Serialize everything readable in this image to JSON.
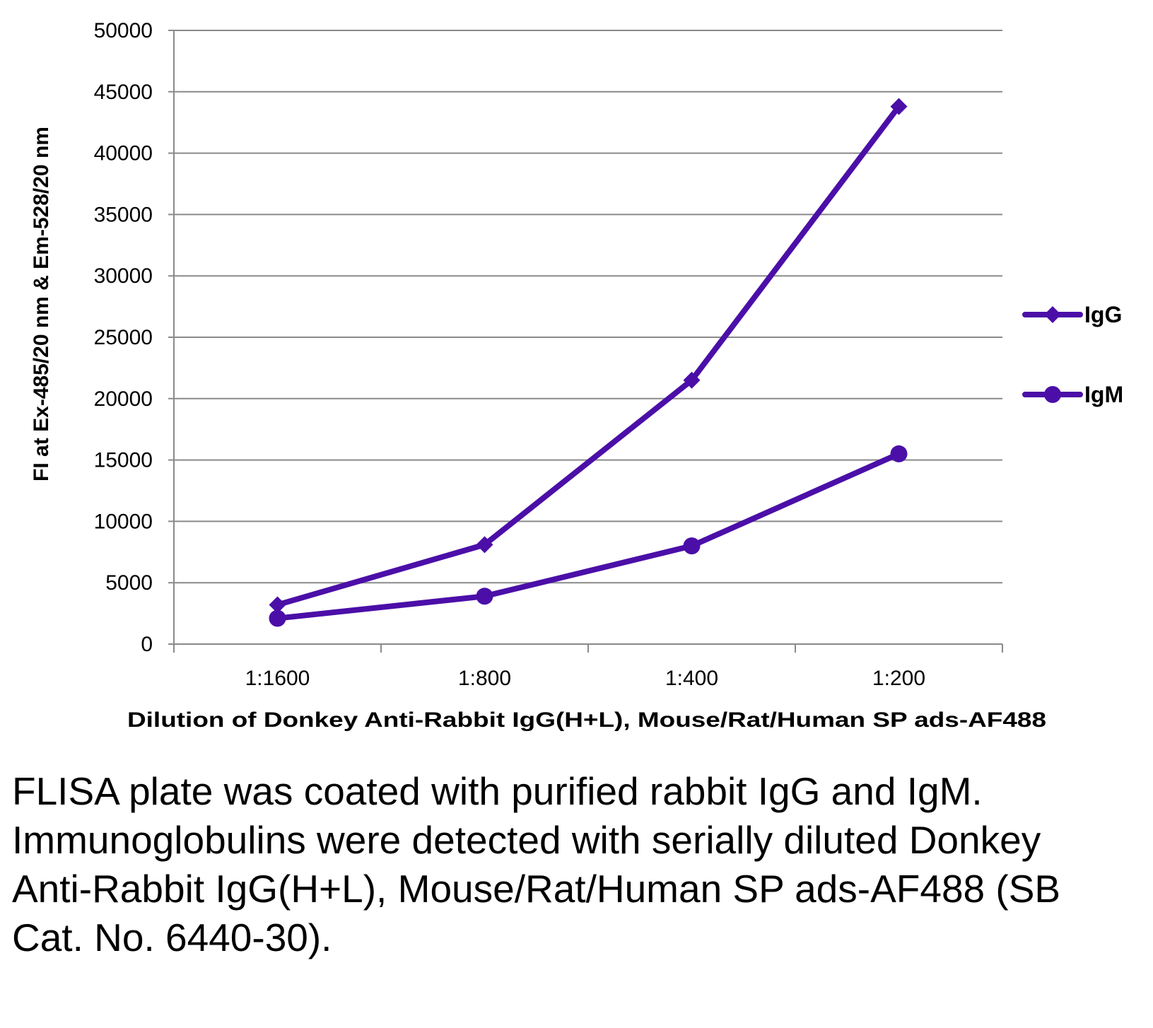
{
  "chart_data": {
    "type": "line",
    "title": "",
    "xlabel": "Dilution of Donkey Anti-Rabbit IgG(H+L), Mouse/Rat/Human SP ads-AF488",
    "ylabel": "FI at Ex-485/20 nm & Em-528/20 nm",
    "categories": [
      "1:1600",
      "1:800",
      "1:400",
      "1:200"
    ],
    "ylim": [
      0,
      50000
    ],
    "yticks": [
      0,
      5000,
      10000,
      15000,
      20000,
      25000,
      30000,
      35000,
      40000,
      45000,
      50000
    ],
    "grid": true,
    "legend": "right",
    "series": [
      {
        "name": "IgG",
        "marker": "diamond",
        "color": "#4B0FA8",
        "values": [
          3200,
          8100,
          21500,
          43800
        ]
      },
      {
        "name": "IgM",
        "marker": "circle",
        "color": "#4B0FA8",
        "values": [
          2100,
          3900,
          8000,
          15500
        ]
      }
    ]
  },
  "caption": "FLISA plate was coated with purified rabbit IgG and IgM.  Immunoglobulins were detected with serially diluted Donkey Anti-Rabbit IgG(H+L), Mouse/Rat/Human SP ads-AF488 (SB Cat. No. 6440-30)."
}
